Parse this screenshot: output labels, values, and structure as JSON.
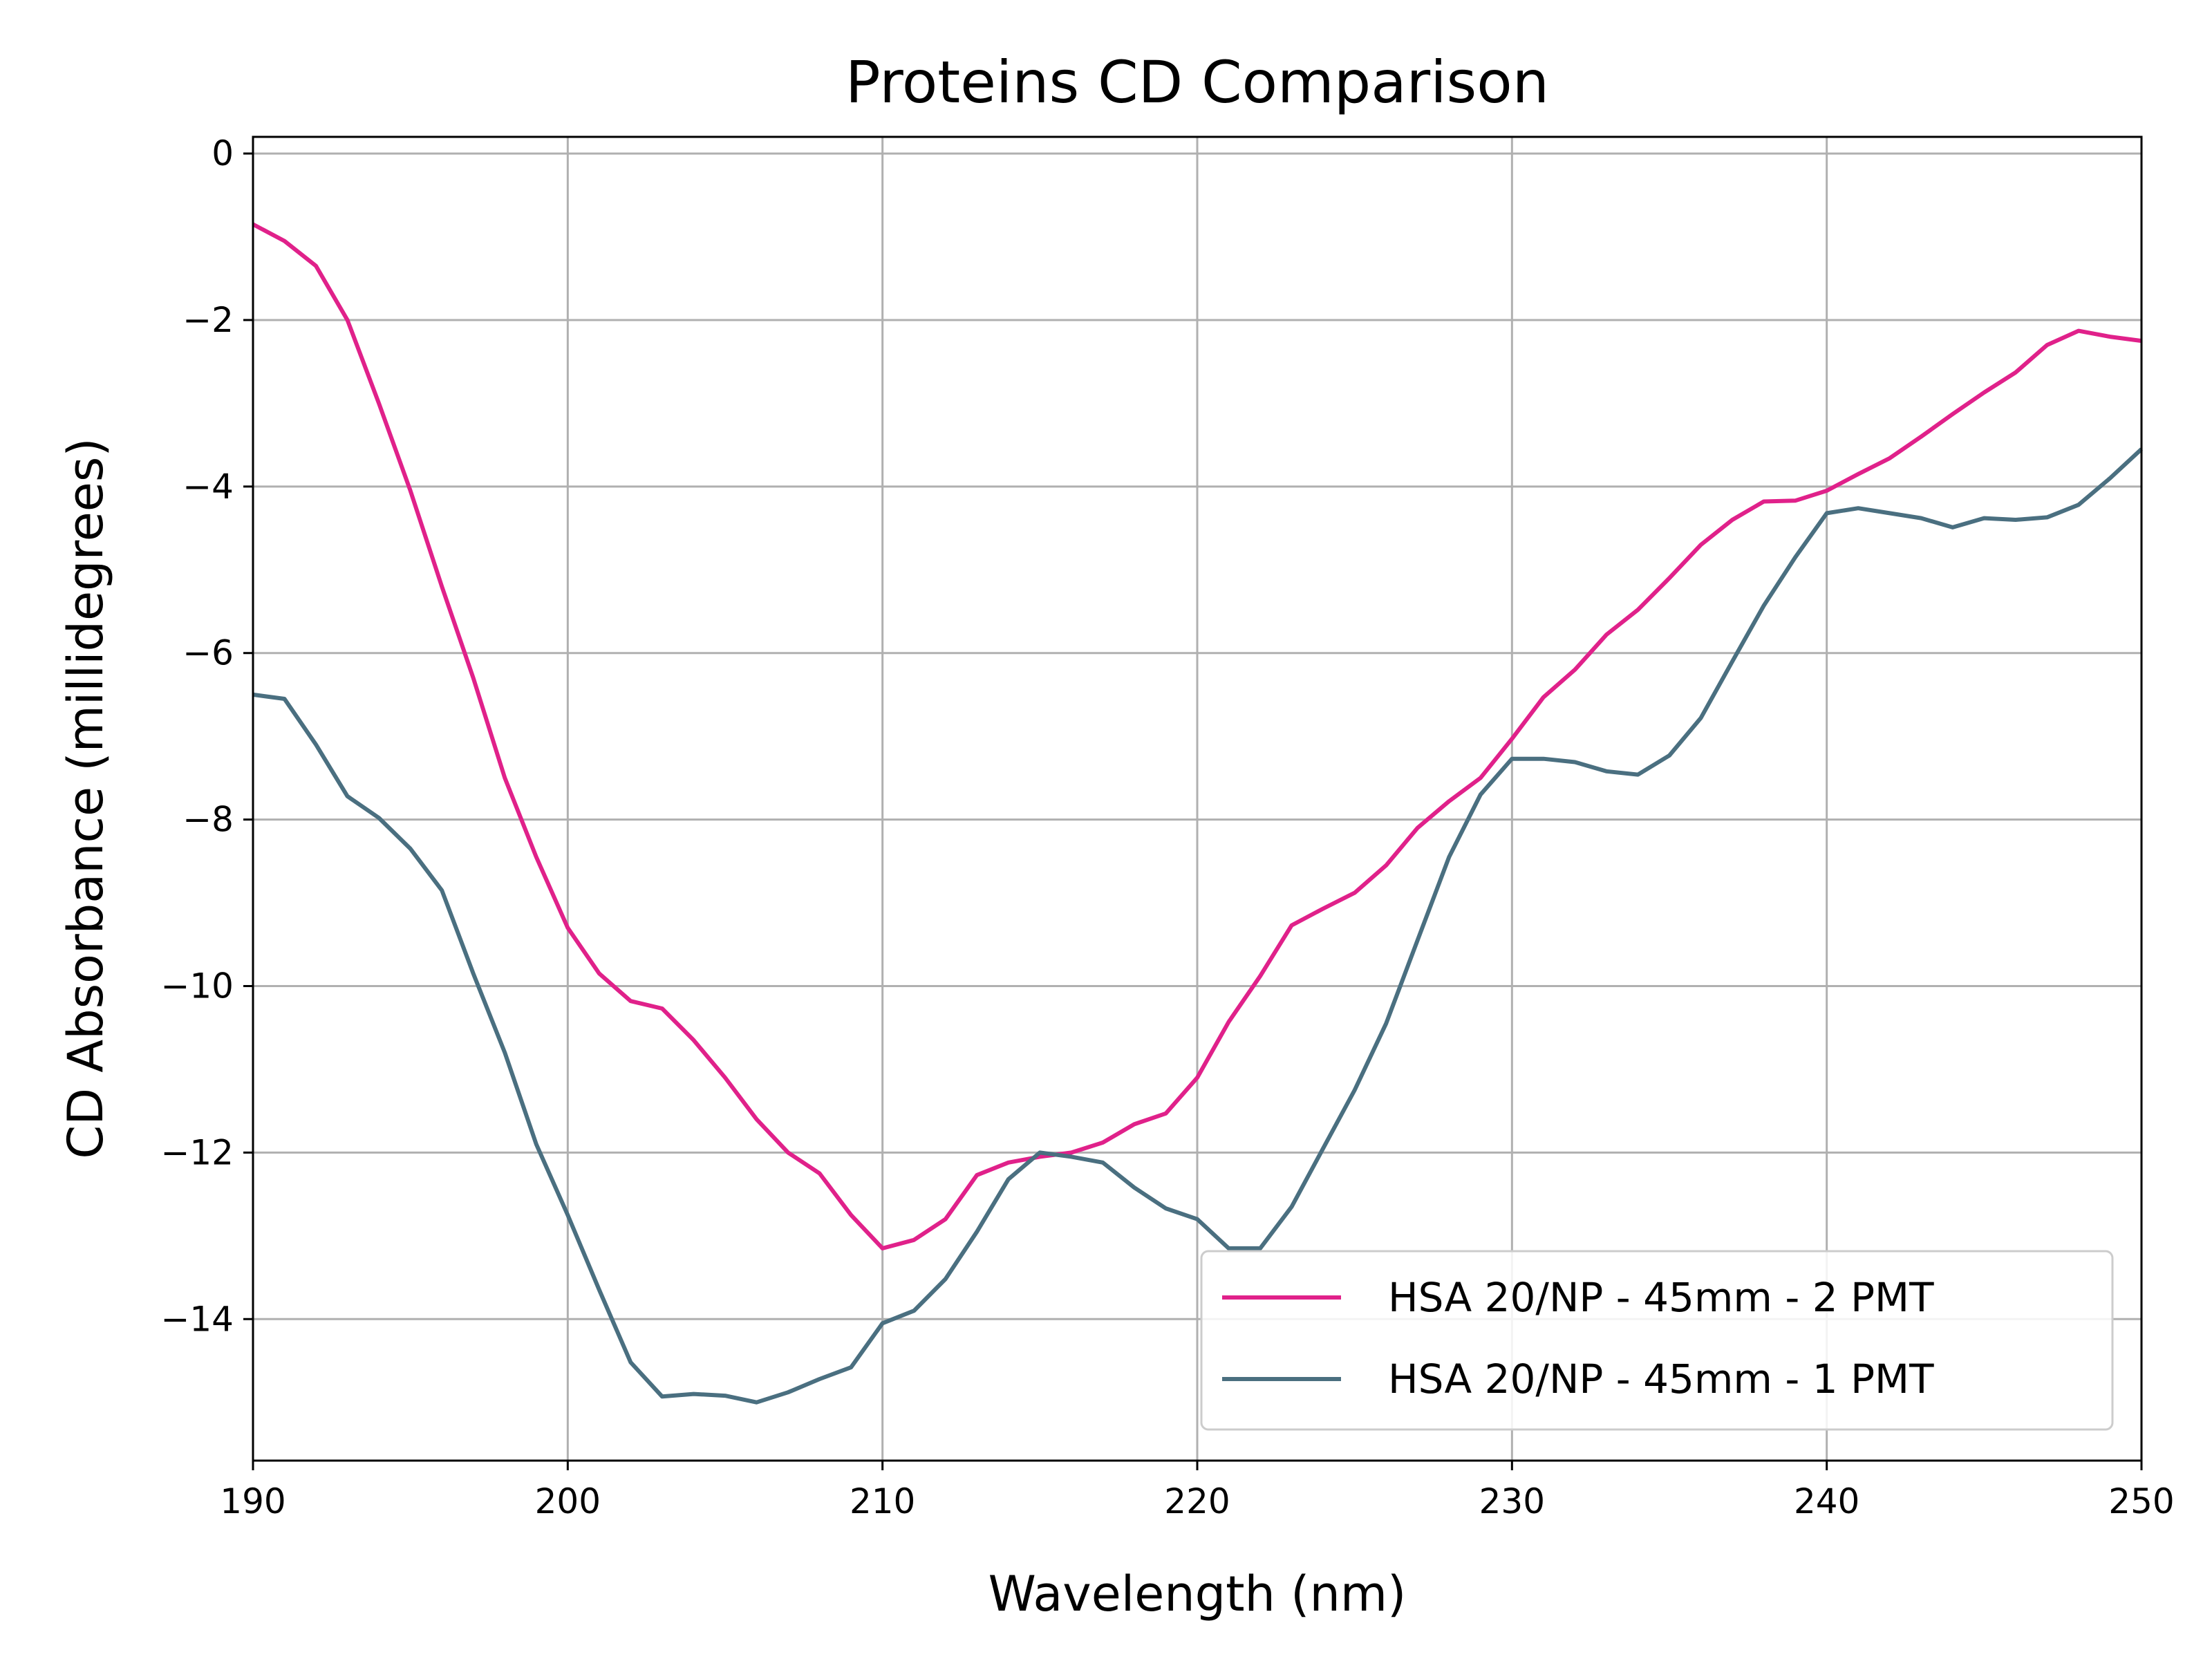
{
  "chart_data": {
    "type": "line",
    "title": "Proteins CD Comparison",
    "xlabel": "Wavelength (nm)",
    "ylabel": "CD Absorbance (millidegrees)",
    "xlim": [
      190,
      250
    ],
    "ylim": [
      -15.7,
      0.2
    ],
    "xticks": [
      190,
      200,
      210,
      220,
      230,
      240,
      250
    ],
    "yticks": [
      0,
      -2,
      -4,
      -6,
      -8,
      -10,
      -12,
      -14
    ],
    "xtick_labels": [
      "190",
      "200",
      "210",
      "220",
      "230",
      "240",
      "250"
    ],
    "ytick_labels": [
      "0",
      "−2",
      "−4",
      "−6",
      "−8",
      "−10",
      "−12",
      "−14"
    ],
    "grid": true,
    "legend_position": "lower-right",
    "x": [
      190,
      191,
      192,
      193,
      194,
      195,
      196,
      197,
      198,
      199,
      200,
      201,
      202,
      203,
      204,
      205,
      206,
      207,
      208,
      209,
      210,
      211,
      212,
      213,
      214,
      215,
      216,
      217,
      218,
      219,
      220,
      221,
      222,
      223,
      224,
      225,
      226,
      227,
      228,
      229,
      230,
      231,
      232,
      233,
      234,
      235,
      236,
      237,
      238,
      239,
      240,
      241,
      242,
      243,
      244,
      245,
      246,
      247,
      248,
      249,
      250
    ],
    "series": [
      {
        "name": "HSA 20/NP - 45mm - 2 PMT",
        "color": "#e0218a",
        "values": [
          -0.85,
          -1.05,
          -1.35,
          -2.0,
          -3.0,
          -4.05,
          -5.2,
          -6.3,
          -7.5,
          -8.45,
          -9.3,
          -9.85,
          -10.18,
          -10.27,
          -10.65,
          -11.1,
          -11.6,
          -12.0,
          -12.25,
          -12.75,
          -13.15,
          -13.05,
          -12.8,
          -12.27,
          -12.12,
          -12.05,
          -12.0,
          -11.88,
          -11.66,
          -11.53,
          -11.1,
          -10.43,
          -9.88,
          -9.27,
          -9.07,
          -8.88,
          -8.55,
          -8.1,
          -7.78,
          -7.5,
          -7.03,
          -6.53,
          -6.2,
          -5.78,
          -5.48,
          -5.1,
          -4.7,
          -4.4,
          -4.18,
          -4.17,
          -4.05,
          -3.85,
          -3.66,
          -3.4,
          -3.13,
          -2.87,
          -2.63,
          -2.3,
          -2.13,
          -2.2,
          -2.25
        ]
      },
      {
        "name": "HSA 20/NP - 45mm - 1 PMT",
        "color": "#4a6f80",
        "values": [
          -6.5,
          -6.55,
          -7.1,
          -7.72,
          -7.98,
          -8.35,
          -8.85,
          -9.85,
          -10.8,
          -11.9,
          -12.75,
          -13.65,
          -14.52,
          -14.93,
          -14.9,
          -14.92,
          -15.0,
          -14.88,
          -14.72,
          -14.58,
          -14.05,
          -13.9,
          -13.52,
          -12.95,
          -12.32,
          -12.0,
          -12.05,
          -12.12,
          -12.42,
          -12.67,
          -12.8,
          -13.15,
          -13.15,
          -12.65,
          -11.95,
          -11.25,
          -10.45,
          -9.45,
          -8.45,
          -7.7,
          -7.27,
          -7.27,
          -7.31,
          -7.42,
          -7.46,
          -7.23,
          -6.78,
          -6.1,
          -5.43,
          -4.85,
          -4.32,
          -4.26,
          -4.32,
          -4.38,
          -4.49,
          -4.38,
          -4.4,
          -4.37,
          -4.22,
          -3.9,
          -3.55
        ]
      }
    ]
  }
}
